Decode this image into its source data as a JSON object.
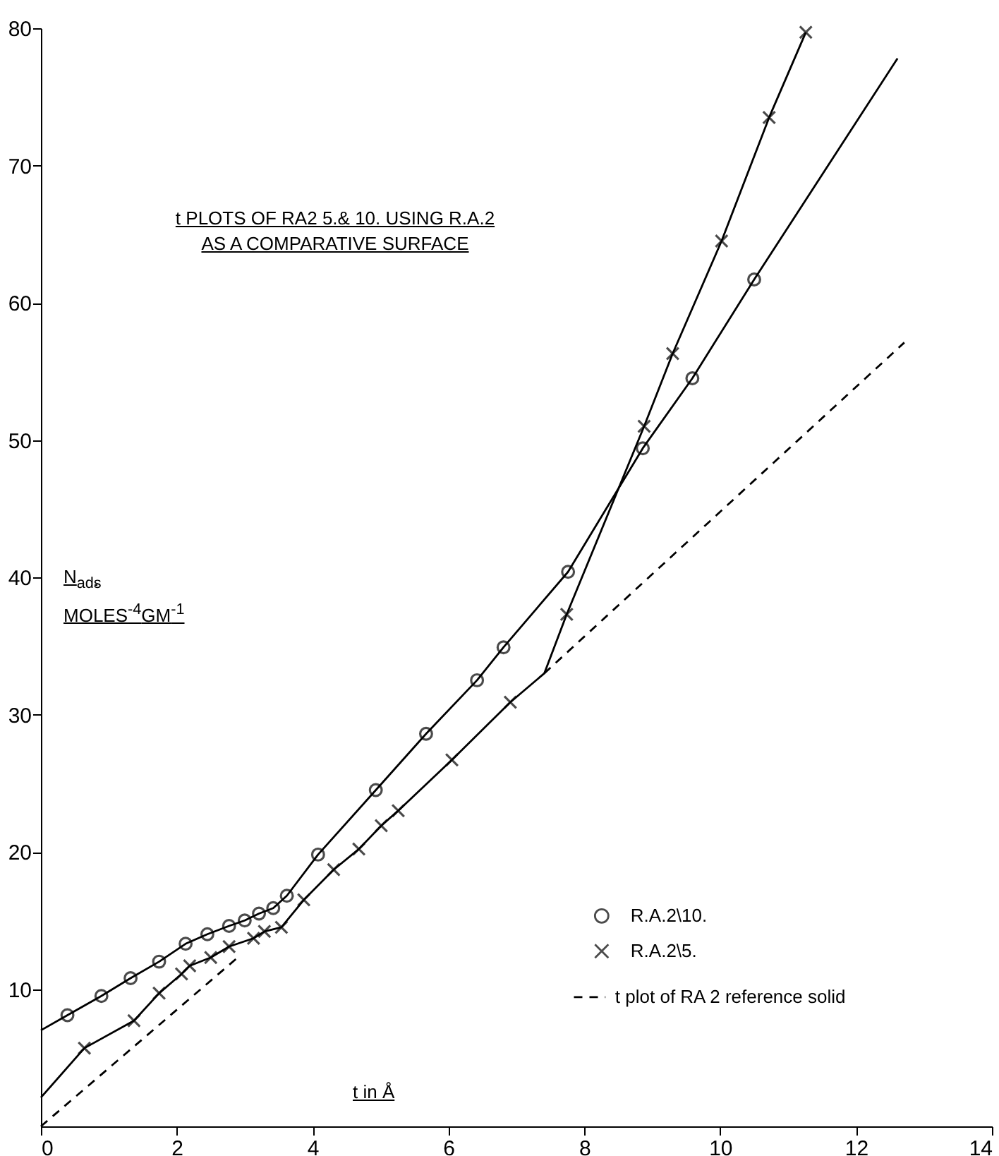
{
  "chart_data": {
    "type": "line",
    "title": "t PLOTS OF RA2 5.& 10. USING R.A.2 AS A COMPARATIVE SURFACE",
    "xlabel": "t in Å",
    "ylabel": "N$_{ads}$ MOLES$^{-4}$GM$^{-1}$",
    "xlim": [
      0,
      14
    ],
    "xticks": [
      0,
      2,
      4,
      6,
      8,
      10,
      12,
      14
    ],
    "ylim": [
      0,
      80
    ],
    "yticks": [
      10,
      20,
      30,
      40,
      50,
      60,
      70,
      80
    ],
    "legend": "bottom right",
    "series": [
      {
        "type": "scatter",
        "name": "R.A.2\\10.",
        "color": "#000000",
        "marker": "circle",
        "x": [
          0.39,
          0.89,
          1.32,
          1.74,
          2.13,
          2.45,
          2.77,
          3.0,
          3.21,
          3.42,
          3.62,
          4.08,
          4.93,
          5.67,
          6.42,
          6.81,
          7.76,
          8.86,
          9.59,
          10.5
        ],
        "values": [
          8.1,
          9.5,
          10.8,
          12.0,
          13.3,
          14.0,
          14.6,
          15.0,
          15.5,
          15.9,
          16.8,
          19.8,
          24.5,
          28.6,
          32.5,
          34.9,
          40.4,
          49.4,
          54.5,
          61.7
        ]
      },
      {
        "type": "scatter",
        "name": "R.A.2\\5.",
        "color": "#000000",
        "marker": "cross",
        "x": [
          0.64,
          1.37,
          1.74,
          2.07,
          2.19,
          2.5,
          2.77,
          3.13,
          3.29,
          3.54,
          3.87,
          4.31,
          4.68,
          5.01,
          5.26,
          6.05,
          6.91,
          7.74,
          8.88,
          9.3,
          10.02,
          10.72,
          11.26
        ],
        "values": [
          5.7,
          7.7,
          9.7,
          11.1,
          11.7,
          12.3,
          13.1,
          13.7,
          14.2,
          14.5,
          16.5,
          18.7,
          20.2,
          21.9,
          23.0,
          26.7,
          30.9,
          37.3,
          51.0,
          56.3,
          64.5,
          73.5,
          79.7
        ]
      },
      {
        "color": "#000000",
        "line_style": "solid",
        "x": [
          0,
          0.39,
          0.89,
          1.32,
          1.74,
          2.13,
          2.45,
          2.77,
          3.0,
          3.21,
          3.42,
          3.62,
          4.08,
          4.93,
          5.67,
          6.42,
          6.81,
          7.76,
          8.86,
          9.59,
          10.5,
          12.61
        ],
        "values": [
          7.0,
          8.1,
          9.5,
          10.8,
          12.0,
          13.3,
          14.0,
          14.6,
          15.0,
          15.5,
          15.9,
          16.8,
          19.8,
          24.5,
          28.6,
          32.5,
          34.9,
          40.4,
          49.4,
          54.5,
          61.7,
          77.8
        ]
      },
      {
        "color": "#000000",
        "line_style": "solid",
        "x": [
          0,
          0.64,
          1.37,
          1.74,
          2.07,
          2.19,
          2.5,
          2.77,
          3.13,
          3.29,
          3.54,
          3.87,
          4.31,
          4.68,
          5.01,
          5.26,
          6.05,
          6.91,
          7.41,
          7.74,
          8.88,
          9.3,
          10.02,
          10.72,
          11.26
        ],
        "values": [
          2.1,
          5.7,
          7.7,
          9.7,
          11.1,
          11.7,
          12.3,
          13.1,
          13.7,
          14.2,
          14.5,
          16.5,
          18.7,
          20.2,
          21.9,
          23.0,
          26.7,
          30.9,
          33.0,
          37.3,
          51.0,
          56.3,
          64.5,
          73.5,
          79.7
        ]
      },
      {
        "color": "#000000",
        "line_style": "dashed",
        "x": [
          0,
          2.92
        ],
        "values": [
          0,
          12.4
        ]
      },
      {
        "name": "t plot of RA 2 reference solid",
        "color": "#000000",
        "line_style": "dashed",
        "x": [
          7.41,
          12.71
        ],
        "values": [
          33.0,
          57.1
        ]
      }
    ]
  }
}
